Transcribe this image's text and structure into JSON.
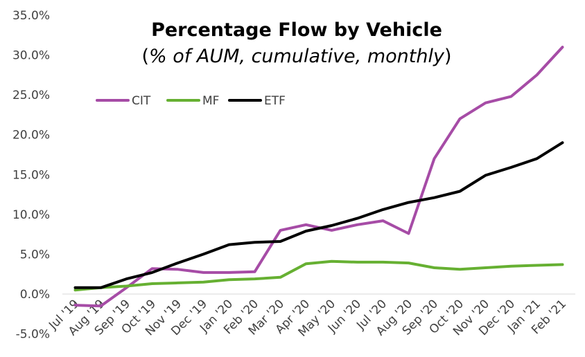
{
  "chart_data": {
    "type": "line",
    "title": "Percentage Flow by Vehicle",
    "subtitle_prefix": "(",
    "subtitle_italic": "% of AUM, cumulative, monthly",
    "subtitle_suffix": ")",
    "categories": [
      "Jul '19",
      "Aug '19",
      "Sep '19",
      "Oct '19",
      "Nov '19",
      "Dec '19",
      "Jan '20",
      "Feb '20",
      "Mar '20",
      "Apr '20",
      "May '20",
      "Jun '20",
      "Jul '20",
      "Aug '20",
      "Sep '20",
      "Oct '20",
      "Nov '20",
      "Dec '20",
      "Jan '21",
      "Feb '21"
    ],
    "ylim": [
      -5,
      35
    ],
    "y_ticks": [
      -5,
      0,
      5,
      10,
      15,
      20,
      25,
      30,
      35
    ],
    "y_tick_labels": [
      "-5.0%",
      "0.0%",
      "5.0%",
      "10.0%",
      "15.0%",
      "20.0%",
      "25.0%",
      "30.0%",
      "35.0%"
    ],
    "legend_position": "top-left",
    "grid": false,
    "series": [
      {
        "name": "CIT",
        "color": "#a64ca6",
        "values": [
          -1.4,
          -1.5,
          0.8,
          3.2,
          3.1,
          2.7,
          2.7,
          2.8,
          8.0,
          8.7,
          8.0,
          8.7,
          9.2,
          7.6,
          17.0,
          22.0,
          24.0,
          24.8,
          27.5,
          31.0
        ]
      },
      {
        "name": "MF",
        "color": "#66b032",
        "values": [
          0.5,
          0.8,
          1.0,
          1.3,
          1.4,
          1.5,
          1.8,
          1.9,
          2.1,
          3.8,
          4.1,
          4.0,
          4.0,
          3.9,
          3.3,
          3.1,
          3.3,
          3.5,
          3.6,
          3.7
        ]
      },
      {
        "name": "ETF",
        "color": "#000000",
        "values": [
          0.8,
          0.8,
          1.9,
          2.7,
          3.9,
          5.0,
          6.2,
          6.5,
          6.6,
          7.9,
          8.6,
          9.5,
          10.6,
          11.5,
          12.1,
          12.9,
          14.9,
          15.9,
          17.0,
          19.0
        ]
      }
    ]
  }
}
